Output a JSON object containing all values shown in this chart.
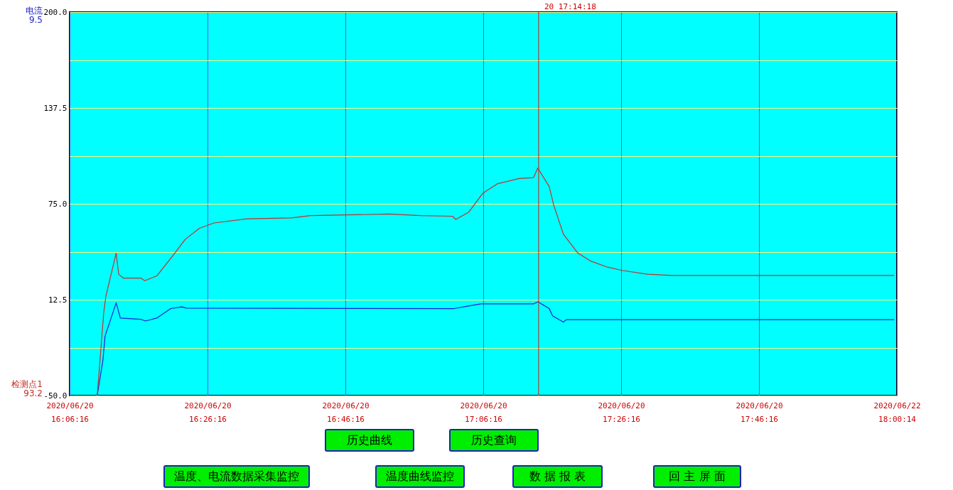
{
  "chart_data": {
    "type": "line",
    "xlim": [
      "2020-06-20T16:06:16",
      "2020-06-20T18:06:16"
    ],
    "xticks": [
      {
        "value": "2020-06-20T16:06:16",
        "label": "2020/06/20 16:06:16"
      },
      {
        "value": "2020-06-20T16:26:16",
        "label": "2020/06/20 16:26:16"
      },
      {
        "value": "2020-06-20T16:46:16",
        "label": "2020/06/20 16:46:16"
      },
      {
        "value": "2020-06-20T17:06:16",
        "label": "2020/06/20 17:06:16"
      },
      {
        "value": "2020-06-20T17:26:16",
        "label": "2020/06/20 17:26:16"
      },
      {
        "value": "2020-06-20T17:46:16",
        "label": "2020/06/20 17:46:16"
      },
      {
        "value": "2020-06-20T18:06:16",
        "label": "2020/06/22 18:00:14"
      }
    ],
    "ylim": [
      -50,
      200
    ],
    "yticks": [
      {
        "value": -50,
        "label": "-50.0"
      },
      {
        "value": -18.75,
        "label": null
      },
      {
        "value": 12.5,
        "label": "12.5"
      },
      {
        "value": 43.75,
        "label": null
      },
      {
        "value": 75,
        "label": "75.0"
      },
      {
        "value": 106.25,
        "label": null
      },
      {
        "value": 137.5,
        "label": "137.5"
      },
      {
        "value": 168.75,
        "label": null
      },
      {
        "value": 200,
        "label": "200.0"
      }
    ],
    "grid": true,
    "series": [
      {
        "name": "电流",
        "color": "#2020d0",
        "x": [
          "2020-06-20T16:10:16",
          "2020-06-20T16:11:06",
          "2020-06-20T16:11:24",
          "2020-06-20T16:13:01",
          "2020-06-20T16:13:37",
          "2020-06-20T16:16:34",
          "2020-06-20T16:17:17",
          "2020-06-20T16:18:54",
          "2020-06-20T16:20:56",
          "2020-06-20T16:22:34",
          "2020-06-20T16:23:13",
          "2020-06-20T17:02:02",
          "2020-06-20T17:04:08",
          "2020-06-20T17:05:56",
          "2020-06-20T17:13:34",
          "2020-06-20T17:14:13",
          "2020-06-20T17:15:50",
          "2020-06-20T17:16:19",
          "2020-06-20T17:17:53",
          "2020-06-20T17:18:22",
          "2020-06-20T18:05:53"
        ],
        "values": [
          -50,
          -26.8,
          -11.3,
          10.5,
          0.5,
          -0.3,
          -1.4,
          0.5,
          6.7,
          7.8,
          7.0,
          6.7,
          8.4,
          9.8,
          9.8,
          11.1,
          6.7,
          2.0,
          -2.1,
          -0.5,
          -0.5
        ]
      },
      {
        "name": "检测点1",
        "color": "#c03028",
        "x": [
          "2020-06-20T16:10:16",
          "2020-06-20T16:11:13",
          "2020-06-20T16:11:31",
          "2020-06-20T16:13:01",
          "2020-06-20T16:13:23",
          "2020-06-20T16:14:02",
          "2020-06-20T16:16:34",
          "2020-06-20T16:17:10",
          "2020-06-20T16:18:54",
          "2020-06-20T16:20:56",
          "2020-06-20T16:23:02",
          "2020-06-20T16:25:05",
          "2020-06-20T16:27:11",
          "2020-06-20T16:31:59",
          "2020-06-20T16:38:24",
          "2020-06-20T16:41:10",
          "2020-06-20T16:52:37",
          "2020-06-20T16:57:14",
          "2020-06-20T17:01:48",
          "2020-06-20T17:02:17",
          "2020-06-20T17:04:08",
          "2020-06-20T17:06:11",
          "2020-06-20T17:08:17",
          "2020-06-20T17:11:28",
          "2020-06-20T17:13:34",
          "2020-06-20T17:14:10",
          "2020-06-20T17:15:50",
          "2020-06-20T17:16:30",
          "2020-06-20T17:17:53",
          "2020-06-20T17:19:59",
          "2020-06-20T17:21:47",
          "2020-06-20T17:24:18",
          "2020-06-20T17:26:24",
          "2020-06-20T17:30:04",
          "2020-06-20T17:33:43",
          "2020-06-20T18:05:53"
        ],
        "values": [
          -50,
          4.3,
          14.6,
          42.9,
          29.0,
          26.6,
          26.6,
          24.9,
          28.0,
          39.4,
          51.8,
          59.0,
          62.5,
          65.2,
          65.8,
          67.3,
          68.3,
          67.3,
          66.9,
          64.8,
          69.4,
          81.8,
          88.0,
          91.5,
          92.1,
          98.3,
          86.3,
          73.9,
          55.3,
          42.9,
          37.8,
          33.7,
          31.6,
          29.1,
          28.3,
          28.3
        ]
      }
    ],
    "ref_lines": [
      {
        "axis": "x",
        "value": "2020-06-20T17:14:18",
        "label": "20 17:14:18",
        "color": "#b04030"
      }
    ],
    "annotations": [
      "9.5",
      "93.2",
      "历史曲线",
      "历史查询",
      "温度、电流数据采集监控",
      "温度曲线监控",
      "数 据 报 表",
      "回 主 屏 面"
    ]
  }
}
